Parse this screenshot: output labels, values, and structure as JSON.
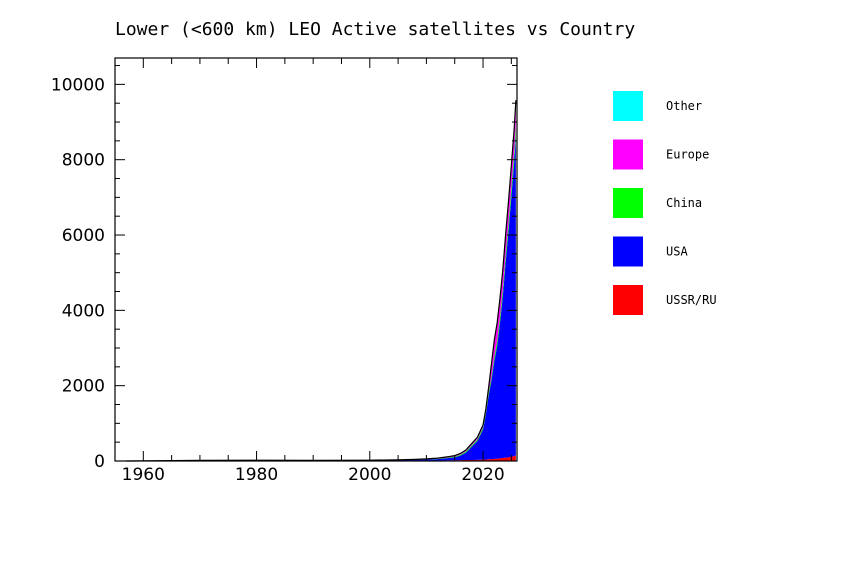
{
  "chart_data": {
    "type": "area",
    "title": "Lower (<600 km) LEO Active satellites vs Country",
    "xlabel": "",
    "ylabel": "",
    "xlim": [
      1955,
      2026
    ],
    "ylim": [
      0,
      10700
    ],
    "x_ticks": [
      1960,
      1980,
      2000,
      2020
    ],
    "y_ticks": [
      0,
      2000,
      4000,
      6000,
      8000,
      10000
    ],
    "stacked": true,
    "legend_position": "right",
    "x": [
      1957,
      1965,
      1970,
      1980,
      1990,
      2000,
      2005,
      2008,
      2010,
      2012,
      2014,
      2015,
      2016,
      2017,
      2018,
      2019,
      2020,
      2020.5,
      2021,
      2021.5,
      2022,
      2022.5,
      2023,
      2023.5,
      2024,
      2024.5,
      2025,
      2025.5,
      2025.8
    ],
    "series": [
      {
        "name": "USSR/RU",
        "color": "#ff0000",
        "values": [
          0,
          5,
          8,
          10,
          8,
          8,
          10,
          12,
          14,
          15,
          18,
          20,
          22,
          25,
          28,
          30,
          35,
          40,
          45,
          50,
          55,
          60,
          70,
          80,
          90,
          100,
          110,
          130,
          150
        ]
      },
      {
        "name": "USA",
        "color": "#0000ff",
        "values": [
          0,
          5,
          10,
          10,
          8,
          10,
          15,
          20,
          25,
          35,
          60,
          80,
          120,
          200,
          350,
          500,
          800,
          1200,
          1700,
          2100,
          2600,
          3000,
          3600,
          4300,
          5200,
          6000,
          6900,
          7800,
          8500
        ]
      },
      {
        "name": "China",
        "color": "#00ff00",
        "values": [
          0,
          0,
          0,
          0,
          0,
          0,
          1,
          2,
          5,
          10,
          15,
          20,
          25,
          30,
          35,
          40,
          50,
          60,
          80,
          100,
          120,
          140,
          160,
          180,
          200,
          220,
          240,
          260,
          280
        ]
      },
      {
        "name": "Europe",
        "color": "#ff00ff",
        "values": [
          0,
          0,
          0,
          2,
          2,
          3,
          5,
          8,
          10,
          12,
          15,
          15,
          20,
          25,
          30,
          35,
          40,
          50,
          100,
          300,
          400,
          420,
          440,
          460,
          480,
          500,
          520,
          540,
          560
        ]
      },
      {
        "name": "Other",
        "color": "#00ffff",
        "values": [
          0,
          0,
          0,
          0,
          0,
          0,
          1,
          2,
          3,
          5,
          8,
          10,
          12,
          15,
          20,
          25,
          30,
          35,
          40,
          45,
          50,
          55,
          60,
          65,
          70,
          75,
          80,
          85,
          90
        ]
      }
    ],
    "legend_order": [
      "Other",
      "Europe",
      "China",
      "USA",
      "USSR/RU"
    ]
  }
}
